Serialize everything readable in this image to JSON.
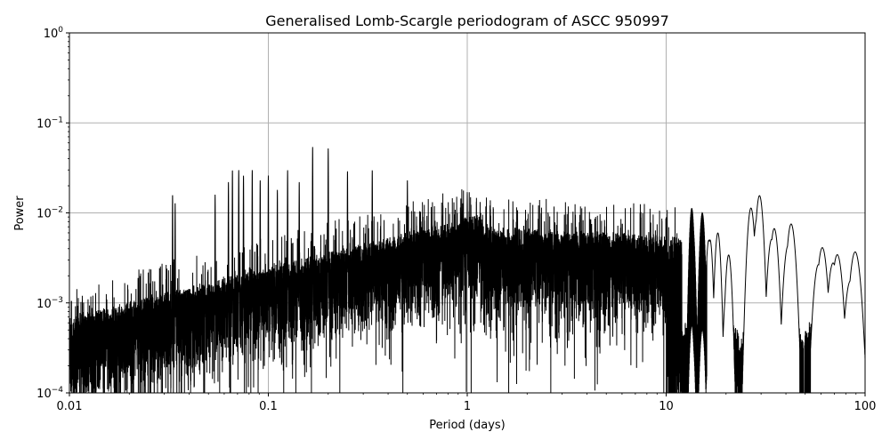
{
  "chart_data": {
    "type": "line",
    "title": "Generalised Lomb-Scargle periodogram of ASCC 950997",
    "xlabel": "Period (days)",
    "ylabel": "Power",
    "xscale": "log",
    "yscale": "log",
    "xlim": [
      0.01,
      100
    ],
    "ylim": [
      0.0001,
      1
    ],
    "grid": true,
    "colors": {
      "line": "#000000",
      "grid": "#b0b0b0",
      "frame": "#000000"
    },
    "x_ticks": [
      {
        "value": 0.01,
        "label": "0.01"
      },
      {
        "value": 0.1,
        "label": "0.1"
      },
      {
        "value": 1,
        "label": "1"
      },
      {
        "value": 10,
        "label": "10"
      },
      {
        "value": 100,
        "label": "100"
      }
    ],
    "y_ticks": [
      {
        "value": 0.0001,
        "base": "10",
        "exp": "−4"
      },
      {
        "value": 0.001,
        "base": "10",
        "exp": "−3"
      },
      {
        "value": 0.01,
        "base": "10",
        "exp": "−2"
      },
      {
        "value": 0.1,
        "base": "10",
        "exp": "−1"
      },
      {
        "value": 1,
        "base": "10",
        "exp": "0"
      }
    ],
    "series": [
      {
        "peaks": [
          {
            "x": 0.033,
            "y": 0.016
          },
          {
            "x": 0.034,
            "y": 0.013
          },
          {
            "x": 0.054,
            "y": 0.016
          },
          {
            "x": 0.063,
            "y": 0.022
          },
          {
            "x": 0.066,
            "y": 0.03
          },
          {
            "x": 0.071,
            "y": 0.03
          },
          {
            "x": 0.075,
            "y": 0.026
          },
          {
            "x": 0.083,
            "y": 0.03
          },
          {
            "x": 0.091,
            "y": 0.023
          },
          {
            "x": 0.1,
            "y": 0.026
          },
          {
            "x": 0.111,
            "y": 0.018
          },
          {
            "x": 0.125,
            "y": 0.03
          },
          {
            "x": 0.143,
            "y": 0.022
          },
          {
            "x": 0.167,
            "y": 0.054
          },
          {
            "x": 0.2,
            "y": 0.052
          },
          {
            "x": 0.25,
            "y": 0.029
          },
          {
            "x": 0.333,
            "y": 0.03
          },
          {
            "x": 0.5,
            "y": 0.023
          },
          {
            "x": 1.0,
            "y": 0.017
          },
          {
            "x": 13.5,
            "y": 0.015
          },
          {
            "x": 15.2,
            "y": 0.01
          },
          {
            "x": 16.5,
            "y": 0.008
          },
          {
            "x": 18.2,
            "y": 0.006
          },
          {
            "x": 20.5,
            "y": 0.004
          },
          {
            "x": 26.8,
            "y": 0.012
          },
          {
            "x": 29.2,
            "y": 0.019
          },
          {
            "x": 34.5,
            "y": 0.009
          },
          {
            "x": 42.0,
            "y": 0.009
          },
          {
            "x": 48.0,
            "y": 0.0003
          },
          {
            "x": 60.0,
            "y": 0.005
          },
          {
            "x": 71.0,
            "y": 0.0045
          },
          {
            "x": 88.0,
            "y": 0.004
          }
        ]
      }
    ]
  }
}
